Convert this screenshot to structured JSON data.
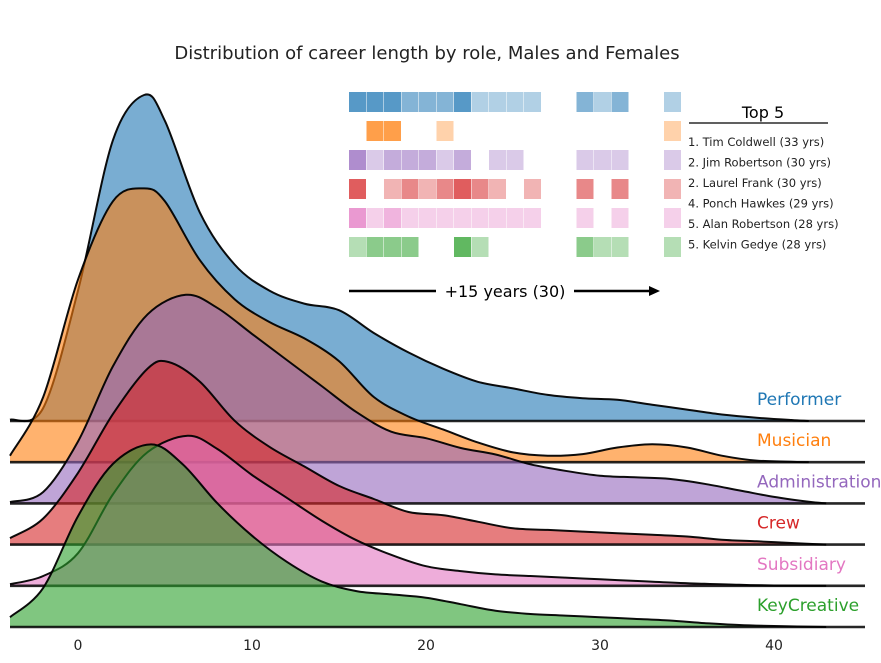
{
  "chart_data": {
    "type": "area",
    "title": "Distribution of career length by role, Males and Females",
    "xlim": [
      -4,
      45
    ],
    "xticks": [
      0,
      10,
      20,
      30,
      40
    ],
    "grid": false,
    "legend_placement": "right, per-ridge labels",
    "series": [
      {
        "name": "Performer",
        "color": "#1f77b4",
        "points": [
          [
            -4,
            0.004
          ],
          [
            -2,
            0.04
          ],
          [
            0,
            0.4
          ],
          [
            2,
            0.86
          ],
          [
            3.8,
            1.0
          ],
          [
            5,
            0.92
          ],
          [
            7,
            0.64
          ],
          [
            9,
            0.48
          ],
          [
            11,
            0.4
          ],
          [
            13,
            0.36
          ],
          [
            15,
            0.34
          ],
          [
            17,
            0.27
          ],
          [
            19,
            0.21
          ],
          [
            21,
            0.16
          ],
          [
            23,
            0.12
          ],
          [
            25,
            0.1
          ],
          [
            27,
            0.08
          ],
          [
            29,
            0.07
          ],
          [
            31,
            0.065
          ],
          [
            33,
            0.05
          ],
          [
            35,
            0.035
          ],
          [
            37,
            0.02
          ],
          [
            39,
            0.01
          ],
          [
            41,
            0.003
          ],
          [
            42,
            0.0
          ]
        ]
      },
      {
        "name": "Musician",
        "color": "#ff7f0e",
        "points": [
          [
            -4,
            0.02
          ],
          [
            -2,
            0.2
          ],
          [
            0,
            0.56
          ],
          [
            2,
            0.8
          ],
          [
            3.8,
            0.84
          ],
          [
            5,
            0.8
          ],
          [
            7,
            0.62
          ],
          [
            9,
            0.5
          ],
          [
            11,
            0.43
          ],
          [
            13,
            0.38
          ],
          [
            15,
            0.31
          ],
          [
            17,
            0.2
          ],
          [
            19,
            0.14
          ],
          [
            21,
            0.1
          ],
          [
            23,
            0.06
          ],
          [
            25,
            0.03
          ],
          [
            27,
            0.02
          ],
          [
            29,
            0.025
          ],
          [
            31,
            0.045
          ],
          [
            33,
            0.055
          ],
          [
            35,
            0.045
          ],
          [
            37,
            0.02
          ],
          [
            39,
            0.005
          ],
          [
            42,
            0.0
          ]
        ]
      },
      {
        "name": "Administration",
        "color": "#9467bd",
        "points": [
          [
            -4,
            0.004
          ],
          [
            -2,
            0.035
          ],
          [
            0,
            0.19
          ],
          [
            2,
            0.42
          ],
          [
            4,
            0.58
          ],
          [
            6.2,
            0.64
          ],
          [
            8,
            0.6
          ],
          [
            10,
            0.52
          ],
          [
            12,
            0.44
          ],
          [
            14,
            0.36
          ],
          [
            16,
            0.28
          ],
          [
            18,
            0.22
          ],
          [
            20,
            0.2
          ],
          [
            22,
            0.17
          ],
          [
            24,
            0.15
          ],
          [
            26,
            0.12
          ],
          [
            28,
            0.1
          ],
          [
            30,
            0.085
          ],
          [
            32,
            0.08
          ],
          [
            34,
            0.075
          ],
          [
            36,
            0.06
          ],
          [
            38,
            0.04
          ],
          [
            40,
            0.02
          ],
          [
            42,
            0.005
          ],
          [
            43,
            0.0
          ]
        ]
      },
      {
        "name": "Crew",
        "color": "#d62728",
        "points": [
          [
            -4,
            0.02
          ],
          [
            -2,
            0.08
          ],
          [
            0,
            0.22
          ],
          [
            2,
            0.4
          ],
          [
            4,
            0.54
          ],
          [
            5.2,
            0.56
          ],
          [
            7,
            0.5
          ],
          [
            9,
            0.38
          ],
          [
            11,
            0.3
          ],
          [
            13,
            0.24
          ],
          [
            15,
            0.18
          ],
          [
            17,
            0.14
          ],
          [
            19,
            0.1
          ],
          [
            21,
            0.09
          ],
          [
            23,
            0.07
          ],
          [
            25,
            0.05
          ],
          [
            27,
            0.045
          ],
          [
            29,
            0.04
          ],
          [
            31,
            0.035
          ],
          [
            33,
            0.03
          ],
          [
            35,
            0.025
          ],
          [
            37,
            0.015
          ],
          [
            39,
            0.01
          ],
          [
            41,
            0.005
          ],
          [
            43,
            0.0
          ]
        ]
      },
      {
        "name": "Subsidiary",
        "color": "#e377c2",
        "points": [
          [
            -4,
            0.005
          ],
          [
            -2,
            0.03
          ],
          [
            0,
            0.1
          ],
          [
            2,
            0.28
          ],
          [
            4,
            0.41
          ],
          [
            6.3,
            0.46
          ],
          [
            8,
            0.42
          ],
          [
            10,
            0.34
          ],
          [
            12,
            0.27
          ],
          [
            14,
            0.2
          ],
          [
            16,
            0.14
          ],
          [
            18,
            0.095
          ],
          [
            20,
            0.06
          ],
          [
            22,
            0.045
          ],
          [
            24,
            0.035
          ],
          [
            26,
            0.03
          ],
          [
            28,
            0.025
          ],
          [
            30,
            0.02
          ],
          [
            32,
            0.015
          ],
          [
            34,
            0.01
          ],
          [
            36,
            0.006
          ],
          [
            38,
            0.003
          ],
          [
            40,
            0.001
          ],
          [
            43,
            0.0
          ]
        ]
      },
      {
        "name": "KeyCreative",
        "color": "#2ca02c",
        "points": [
          [
            -4,
            0.03
          ],
          [
            -2,
            0.12
          ],
          [
            0,
            0.34
          ],
          [
            2,
            0.5
          ],
          [
            4.2,
            0.56
          ],
          [
            6,
            0.5
          ],
          [
            8,
            0.38
          ],
          [
            10,
            0.28
          ],
          [
            12,
            0.2
          ],
          [
            14,
            0.14
          ],
          [
            16,
            0.11
          ],
          [
            18,
            0.1
          ],
          [
            20,
            0.09
          ],
          [
            22,
            0.07
          ],
          [
            24,
            0.05
          ],
          [
            26,
            0.04
          ],
          [
            28,
            0.035
          ],
          [
            30,
            0.03
          ],
          [
            32,
            0.025
          ],
          [
            34,
            0.02
          ],
          [
            36,
            0.012
          ],
          [
            38,
            0.006
          ],
          [
            40,
            0.003
          ],
          [
            43,
            0.0
          ]
        ]
      }
    ],
    "inset": {
      "title": "Top 5",
      "arrow_label": "+15 years (30)",
      "top5": [
        "1. Tim Coldwell (33 yrs)",
        "2. Jim Robertson (30 yrs)",
        "2. Laurel Frank (30 yrs)",
        "4. Ponch Hawkes (29 yrs)",
        "5. Alan Robertson (28 yrs)",
        "5. Kelvin Gedye (28 yrs)"
      ],
      "grid_rows": [
        {
          "role": "Performer",
          "color": "#1f77b4",
          "levels": [
            3,
            3,
            3,
            2,
            2,
            2,
            3,
            1,
            1,
            1,
            1,
            0,
            0,
            2,
            1,
            2,
            0,
            0,
            1
          ]
        },
        {
          "role": "Musician",
          "color": "#ff7f0e",
          "levels": [
            0,
            3,
            3,
            0,
            0,
            1,
            0,
            0,
            0,
            0,
            0,
            0,
            0,
            0,
            0,
            0,
            0,
            0,
            1
          ]
        },
        {
          "role": "Administration",
          "color": "#9467bd",
          "levels": [
            3,
            1,
            2,
            2,
            2,
            1,
            2,
            0,
            1,
            1,
            0,
            0,
            0,
            1,
            1,
            1,
            0,
            0,
            1
          ]
        },
        {
          "role": "Crew",
          "color": "#d62728",
          "levels": [
            3,
            0,
            1,
            2,
            1,
            2,
            3,
            2,
            1,
            0,
            1,
            0,
            0,
            2,
            0,
            2,
            0,
            0,
            1
          ]
        },
        {
          "role": "Subsidiary",
          "color": "#e377c2",
          "levels": [
            3,
            1,
            2,
            1,
            1,
            1,
            1,
            1,
            1,
            1,
            1,
            0,
            0,
            1,
            0,
            1,
            0,
            0,
            1
          ]
        },
        {
          "role": "KeyCreative",
          "color": "#2ca02c",
          "levels": [
            1,
            2,
            2,
            2,
            0,
            0,
            3,
            1,
            0,
            0,
            0,
            0,
            0,
            2,
            1,
            1,
            0,
            0,
            1
          ]
        }
      ]
    }
  }
}
